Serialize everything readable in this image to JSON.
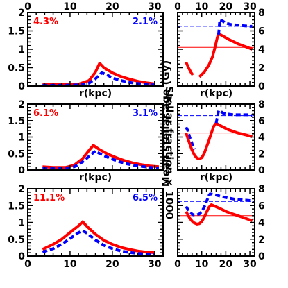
{
  "figure": {
    "left_ylabel": "Stellar fraction × 1000",
    "right_ylabel": "Mean stellar age (Gy)",
    "panel_xlabel": "r(kpc)"
  },
  "colors": {
    "red": "#ff0000",
    "blue": "#0000ff",
    "axis": "#000000"
  },
  "chart_data": [
    {
      "type": "line",
      "panel": "left-row-1",
      "xlim": [
        0,
        32
      ],
      "ylim": [
        0,
        2
      ],
      "xticks": [
        0,
        10,
        20,
        30
      ],
      "yticks": [
        0,
        0.5,
        1,
        1.5,
        2
      ],
      "xticklabels_top": [
        "0",
        "10",
        "20",
        "30"
      ],
      "yticklabels": [
        "0",
        "0.5",
        "1",
        "1.5",
        "2"
      ],
      "xlabel": "r(kpc)",
      "annotations": [
        {
          "text": "4.3%",
          "color": "red",
          "pos": "top-left"
        },
        {
          "text": "2.1%",
          "color": "blue",
          "pos": "top-right"
        }
      ],
      "series": [
        {
          "color": "red",
          "style": "solid",
          "x": [
            3.5,
            8,
            12,
            14.5,
            16,
            17,
            18,
            20,
            22,
            24,
            26,
            28,
            30
          ],
          "y": [
            0.04,
            0.04,
            0.05,
            0.15,
            0.38,
            0.62,
            0.5,
            0.36,
            0.26,
            0.19,
            0.13,
            0.09,
            0.06
          ]
        },
        {
          "color": "blue",
          "style": "dashed",
          "x": [
            3.5,
            8,
            12,
            14.5,
            16,
            17.5,
            18.5,
            20,
            22,
            24,
            26,
            28,
            30
          ],
          "y": [
            0.02,
            0.02,
            0.03,
            0.08,
            0.2,
            0.36,
            0.32,
            0.22,
            0.15,
            0.1,
            0.07,
            0.05,
            0.03
          ]
        }
      ]
    },
    {
      "type": "line",
      "panel": "left-row-2",
      "xlim": [
        0,
        32
      ],
      "ylim": [
        0,
        2
      ],
      "xticks": [
        0,
        10,
        20,
        30
      ],
      "yticks": [
        0,
        0.5,
        1,
        1.5,
        2
      ],
      "yticklabels": [
        "0",
        "0.5",
        "1",
        "1.5",
        "2"
      ],
      "xlabel": "r(kpc)",
      "annotations": [
        {
          "text": "6.1%",
          "color": "red",
          "pos": "top-left"
        },
        {
          "text": "3.1%",
          "color": "blue",
          "pos": "top-right"
        }
      ],
      "series": [
        {
          "color": "red",
          "style": "solid",
          "x": [
            3.5,
            6,
            9,
            11,
            13,
            14.5,
            15.5,
            17,
            19,
            21,
            23,
            25,
            27,
            29,
            31
          ],
          "y": [
            0.1,
            0.08,
            0.08,
            0.15,
            0.35,
            0.6,
            0.75,
            0.62,
            0.48,
            0.37,
            0.28,
            0.21,
            0.16,
            0.12,
            0.1
          ]
        },
        {
          "color": "blue",
          "style": "dashed",
          "x": [
            3.5,
            6,
            9,
            11,
            13,
            14.5,
            16,
            17,
            19,
            21,
            23,
            25,
            27,
            29,
            31
          ],
          "y": [
            0.05,
            0.04,
            0.05,
            0.1,
            0.25,
            0.42,
            0.58,
            0.5,
            0.38,
            0.28,
            0.2,
            0.15,
            0.11,
            0.08,
            0.06
          ]
        }
      ]
    },
    {
      "type": "line",
      "panel": "left-row-3",
      "xlim": [
        0,
        32
      ],
      "ylim": [
        0,
        2
      ],
      "xticks": [
        0,
        10,
        20,
        30
      ],
      "yticks": [
        0,
        0.5,
        1,
        1.5,
        2
      ],
      "xticklabels_bottom": [
        "0",
        "10",
        "20",
        "30"
      ],
      "yticklabels": [
        "0",
        "0.5",
        "1",
        "1.5",
        "2"
      ],
      "annotations": [
        {
          "text": "11.1%",
          "color": "red",
          "pos": "top-left"
        },
        {
          "text": "6.5%",
          "color": "blue",
          "pos": "top-right"
        }
      ],
      "series": [
        {
          "color": "red",
          "style": "solid",
          "x": [
            3.5,
            6,
            8,
            10,
            12,
            13,
            14,
            16,
            18,
            20,
            22,
            24,
            26,
            28,
            30
          ],
          "y": [
            0.2,
            0.35,
            0.5,
            0.7,
            0.9,
            1.02,
            0.88,
            0.65,
            0.47,
            0.35,
            0.26,
            0.2,
            0.15,
            0.12,
            0.1
          ]
        },
        {
          "color": "blue",
          "style": "dashed",
          "x": [
            3.5,
            6,
            8,
            10,
            12,
            13,
            14,
            16,
            18,
            20,
            22,
            24,
            26,
            28,
            30
          ],
          "y": [
            0.12,
            0.22,
            0.35,
            0.52,
            0.7,
            0.75,
            0.68,
            0.48,
            0.32,
            0.22,
            0.15,
            0.11,
            0.08,
            0.06,
            0.05
          ]
        }
      ]
    },
    {
      "type": "line",
      "panel": "right-row-1",
      "xlim": [
        0,
        32
      ],
      "ylim": [
        0,
        8
      ],
      "xticks": [
        0,
        10,
        20,
        30
      ],
      "yticks": [
        0,
        2,
        4,
        6,
        8
      ],
      "xticklabels_top": [
        "0",
        "10",
        "20",
        "30"
      ],
      "yticklabels": [
        "0",
        "2",
        "4",
        "6",
        "8"
      ],
      "xlabel": "r(kpc)",
      "series": [
        {
          "color": "red",
          "style": "thin",
          "x": [
            0,
            32
          ],
          "y": [
            4.2,
            4.2
          ]
        },
        {
          "color": "blue",
          "style": "thin-dashed",
          "x": [
            0,
            32
          ],
          "y": [
            6.5,
            6.5
          ]
        },
        {
          "color": "red",
          "style": "solid",
          "x": [
            3.5,
            4.5,
            5.5,
            6.3
          ],
          "y": [
            2.6,
            2.0,
            1.5,
            1.2
          ]
        },
        {
          "color": "red",
          "style": "solid",
          "x": [
            9,
            11,
            13,
            14.5,
            15.5,
            16.5,
            17,
            19,
            21,
            23,
            25,
            27,
            29,
            31
          ],
          "y": [
            1.0,
            1.5,
            2.3,
            3.2,
            4.2,
            5.3,
            5.7,
            5.4,
            5.1,
            4.85,
            4.6,
            4.4,
            4.2,
            4.0
          ]
        },
        {
          "color": "blue",
          "style": "dashed",
          "x": [
            17,
            17.5,
            18.5,
            20,
            22,
            24,
            26,
            28,
            30,
            31
          ],
          "y": [
            5.6,
            7.2,
            7.1,
            6.85,
            6.7,
            6.65,
            6.6,
            6.55,
            6.5,
            6.5
          ]
        }
      ]
    },
    {
      "type": "line",
      "panel": "right-row-2",
      "xlim": [
        0,
        32
      ],
      "ylim": [
        0,
        8
      ],
      "xticks": [
        0,
        10,
        20,
        30
      ],
      "yticks": [
        0,
        2,
        4,
        6,
        8
      ],
      "yticklabels": [
        "0",
        "2",
        "4",
        "6",
        "8"
      ],
      "xlabel": "r(kpc)",
      "series": [
        {
          "color": "red",
          "style": "thin",
          "x": [
            0,
            32
          ],
          "y": [
            4.5,
            4.5
          ]
        },
        {
          "color": "blue",
          "style": "thin-dashed",
          "x": [
            0,
            32
          ],
          "y": [
            6.6,
            6.6
          ]
        },
        {
          "color": "blue",
          "style": "dashed",
          "x": [
            3.5,
            4.2,
            5,
            6,
            7
          ],
          "y": [
            5.2,
            4.8,
            4.0,
            3.2,
            2.5
          ]
        },
        {
          "color": "red",
          "style": "solid",
          "x": [
            3.5,
            5,
            6,
            7,
            8,
            9,
            10,
            11,
            12,
            13,
            14,
            15,
            16,
            17,
            19,
            21,
            23,
            25,
            27,
            29,
            31
          ],
          "y": [
            4.5,
            3.2,
            2.4,
            1.8,
            1.45,
            1.35,
            1.5,
            2.0,
            2.8,
            3.6,
            4.5,
            5.3,
            5.7,
            5.5,
            5.2,
            4.9,
            4.7,
            4.5,
            4.35,
            4.2,
            4.05
          ]
        },
        {
          "color": "blue",
          "style": "dashed",
          "x": [
            16,
            17,
            18,
            19,
            21,
            23,
            25,
            27,
            29,
            31
          ],
          "y": [
            5.7,
            7.2,
            7.1,
            6.9,
            6.8,
            6.7,
            6.7,
            6.7,
            6.7,
            6.6
          ]
        }
      ]
    },
    {
      "type": "line",
      "panel": "right-row-3",
      "xlim": [
        0,
        32
      ],
      "ylim": [
        0,
        8
      ],
      "xticks": [
        0,
        10,
        20,
        30
      ],
      "yticks": [
        0,
        2,
        4,
        6,
        8
      ],
      "xticklabels_bottom": [
        "0",
        "10",
        "20",
        "30"
      ],
      "yticklabels": [
        "0",
        "2",
        "4",
        "6",
        "8"
      ],
      "series": [
        {
          "color": "red",
          "style": "thin",
          "x": [
            0,
            32
          ],
          "y": [
            4.8,
            4.8
          ]
        },
        {
          "color": "blue",
          "style": "thin-dashed",
          "x": [
            0,
            32
          ],
          "y": [
            6.5,
            6.5
          ]
        },
        {
          "color": "red",
          "style": "solid",
          "x": [
            3.5,
            5,
            6.5,
            8,
            9,
            10,
            11,
            12,
            13,
            14,
            16,
            18,
            20,
            22,
            24,
            26,
            28,
            30,
            31
          ],
          "y": [
            5.3,
            4.5,
            4.0,
            3.8,
            3.85,
            4.1,
            4.6,
            5.2,
            5.8,
            6.1,
            5.85,
            5.6,
            5.3,
            5.1,
            4.9,
            4.7,
            4.5,
            4.3,
            4.2
          ]
        },
        {
          "color": "blue",
          "style": "dashed",
          "x": [
            3.5,
            5,
            6.5,
            8,
            9,
            10,
            11,
            12,
            13,
            13.5,
            14.5,
            16,
            18,
            20,
            22,
            24,
            26,
            28,
            30,
            31
          ],
          "y": [
            5.9,
            5.2,
            4.9,
            4.9,
            5.0,
            5.3,
            5.8,
            6.5,
            7.2,
            7.4,
            7.35,
            7.25,
            7.1,
            6.95,
            6.85,
            6.75,
            6.7,
            6.65,
            6.6,
            6.55
          ]
        }
      ]
    }
  ]
}
